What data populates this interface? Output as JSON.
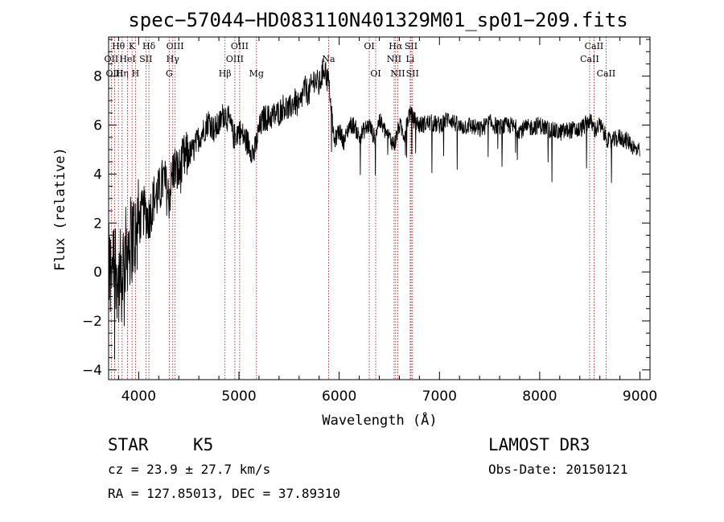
{
  "chart_data": {
    "type": "line",
    "title": "spec−57044−HD083110N401329M01_sp01−209.fits",
    "xlabel": "Wavelength (Å)",
    "ylabel": "Flux (relative)",
    "xlim": [
      3700,
      9100
    ],
    "ylim": [
      -4.4,
      9.6
    ],
    "xticks": [
      4000,
      5000,
      6000,
      7000,
      8000,
      9000
    ],
    "xtick_labels": [
      "4000",
      "5000",
      "6000",
      "7000",
      "8000",
      "9000"
    ],
    "yticks": [
      -4,
      -2,
      0,
      2,
      4,
      6,
      8
    ],
    "ytick_labels": [
      "−4",
      "−2",
      "0",
      "2",
      "4",
      "6",
      "8"
    ],
    "series": [
      {
        "name": "spectrum",
        "x": [
          3700,
          3750,
          3800,
          3850,
          3900,
          3950,
          4000,
          4050,
          4100,
          4150,
          4200,
          4250,
          4300,
          4350,
          4400,
          4450,
          4500,
          4550,
          4600,
          4650,
          4700,
          4750,
          4800,
          4850,
          4900,
          4950,
          5000,
          5050,
          5100,
          5150,
          5200,
          5250,
          5300,
          5350,
          5400,
          5450,
          5500,
          5550,
          5600,
          5650,
          5700,
          5750,
          5800,
          5850,
          5900,
          5950,
          6000,
          6050,
          6100,
          6150,
          6200,
          6250,
          6300,
          6350,
          6400,
          6450,
          6500,
          6550,
          6600,
          6650,
          6700,
          6750,
          6800,
          6900,
          7000,
          7100,
          7200,
          7300,
          7400,
          7500,
          7600,
          7700,
          7800,
          7900,
          8000,
          8100,
          8200,
          8300,
          8400,
          8500,
          8550,
          8600,
          8650,
          8700,
          8800,
          8900,
          8950,
          9000
        ],
        "y": [
          0.0,
          1.0,
          -0.5,
          0.5,
          1.2,
          1.5,
          2.0,
          2.5,
          2.2,
          3.0,
          3.2,
          3.8,
          3.0,
          4.3,
          4.0,
          4.6,
          4.8,
          5.0,
          5.5,
          5.8,
          6.2,
          5.8,
          6.0,
          6.5,
          6.2,
          5.5,
          5.8,
          5.5,
          5.2,
          4.8,
          5.8,
          6.3,
          6.3,
          6.4,
          6.5,
          6.8,
          6.6,
          7.0,
          6.7,
          7.5,
          7.3,
          7.9,
          7.6,
          8.4,
          7.6,
          5.3,
          5.8,
          5.3,
          6.0,
          6.0,
          5.5,
          5.8,
          6.0,
          5.5,
          6.2,
          5.8,
          5.5,
          5.2,
          6.0,
          5.6,
          6.5,
          6.2,
          6.0,
          6.1,
          6.0,
          6.3,
          5.9,
          6.0,
          5.8,
          6.1,
          5.9,
          6.0,
          5.8,
          5.9,
          6.0,
          5.8,
          5.7,
          5.8,
          5.8,
          6.2,
          5.8,
          6.0,
          5.6,
          5.3,
          5.5,
          5.3,
          5.0,
          4.9
        ]
      }
    ],
    "lines": [
      {
        "label": "Hθ",
        "x": 3798,
        "row": 1
      },
      {
        "label": "OII",
        "x": 3727,
        "row": 2
      },
      {
        "label": "OIII",
        "x": 3760,
        "row": 3
      },
      {
        "label": "Hη",
        "x": 3835,
        "row": 3
      },
      {
        "label": "K",
        "x": 3934,
        "row": 1
      },
      {
        "label": "HeI",
        "x": 3889,
        "row": 2
      },
      {
        "label": "H",
        "x": 3968,
        "row": 3
      },
      {
        "label": "Hδ",
        "x": 4102,
        "row": 1
      },
      {
        "label": "SII",
        "x": 4072,
        "row": 2
      },
      {
        "label": "OIII",
        "x": 4363,
        "row": 1
      },
      {
        "label": "Hγ",
        "x": 4340,
        "row": 2
      },
      {
        "label": "G",
        "x": 4305,
        "row": 3
      },
      {
        "label": "Hβ",
        "x": 4861,
        "row": 3
      },
      {
        "label": "OIII",
        "x": 5007,
        "row": 1
      },
      {
        "label": "OIII",
        "x": 4959,
        "row": 2
      },
      {
        "label": "Mg",
        "x": 5175,
        "row": 3
      },
      {
        "label": "Na",
        "x": 5894,
        "row": 2
      },
      {
        "label": "OI",
        "x": 6300,
        "row": 1
      },
      {
        "label": "OI",
        "x": 6364,
        "row": 3
      },
      {
        "label": "Hα",
        "x": 6563,
        "row": 1
      },
      {
        "label": "NII",
        "x": 6548,
        "row": 2
      },
      {
        "label": "NII",
        "x": 6584,
        "row": 3
      },
      {
        "label": "SII",
        "x": 6717,
        "row": 1
      },
      {
        "label": "Li",
        "x": 6708,
        "row": 2
      },
      {
        "label": "SII",
        "x": 6731,
        "row": 3
      },
      {
        "label": "CaII",
        "x": 8542,
        "row": 1
      },
      {
        "label": "CaII",
        "x": 8498,
        "row": 2
      },
      {
        "label": "CaII",
        "x": 8662,
        "row": 3
      }
    ]
  },
  "info": {
    "object_class": "STAR",
    "subclass": "K5",
    "survey": "LAMOST DR3",
    "redshift": "cz = 23.9 ± 27.7 km/s",
    "obs_date": "Obs-Date: 20150121",
    "coords": "RA = 127.85013, DEC =  37.89310"
  }
}
